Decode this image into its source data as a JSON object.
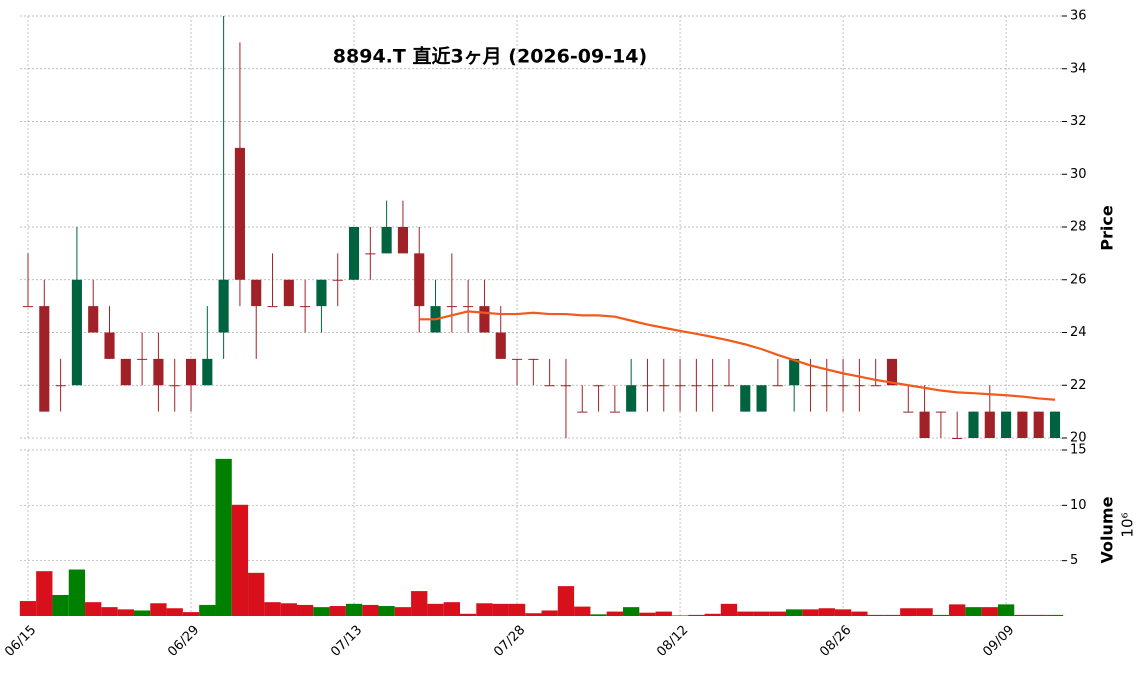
{
  "chart_data": {
    "type": "candlestick",
    "title": "8894.T  直近3ヶ月  (2026-09-14)",
    "categories": [
      "06/15",
      null,
      null,
      null,
      null,
      null,
      null,
      null,
      null,
      null,
      "06/29",
      null,
      null,
      null,
      null,
      null,
      null,
      null,
      null,
      null,
      "07/13",
      null,
      null,
      null,
      null,
      null,
      null,
      null,
      null,
      null,
      "07/28",
      null,
      null,
      null,
      null,
      null,
      null,
      null,
      null,
      null,
      "08/12",
      null,
      null,
      null,
      null,
      null,
      null,
      null,
      null,
      null,
      "08/26",
      null,
      null,
      null,
      null,
      null,
      null,
      null,
      null,
      null,
      "09/09",
      null,
      null,
      null
    ],
    "open": [
      25,
      25,
      22,
      22,
      25,
      24,
      23,
      23,
      23,
      22,
      23,
      22,
      24,
      31,
      26,
      25,
      26,
      25,
      25,
      26,
      26,
      27,
      27,
      28,
      27,
      24,
      25,
      25,
      25,
      24,
      23,
      23,
      22,
      22,
      21,
      22,
      21,
      21,
      22,
      22,
      22,
      22,
      22,
      22,
      21,
      21,
      22,
      22,
      22,
      22,
      22,
      22,
      22,
      23,
      21,
      21,
      21,
      20,
      20,
      21,
      20,
      21,
      21,
      20
    ],
    "high": [
      27,
      26,
      23,
      28,
      26,
      25,
      23,
      24,
      24,
      23,
      23,
      25,
      36,
      35,
      26,
      27,
      26,
      26,
      26,
      27,
      28,
      28,
      29,
      29,
      28,
      26,
      27,
      26,
      26,
      25,
      23,
      23,
      23,
      23,
      22,
      22,
      22,
      23,
      23,
      23,
      23,
      23,
      23,
      23,
      22,
      22,
      23,
      23,
      23,
      23,
      23,
      23,
      23,
      23,
      22,
      22,
      21,
      21,
      21,
      22,
      21,
      21,
      21,
      21
    ],
    "low": [
      25,
      21,
      21,
      22,
      24,
      23,
      22,
      22,
      21,
      21,
      21,
      22,
      23,
      25,
      23,
      25,
      25,
      24,
      24,
      25,
      26,
      26,
      27,
      27,
      24,
      24,
      24,
      24,
      24,
      23,
      22,
      22,
      22,
      20,
      21,
      21,
      21,
      21,
      21,
      21,
      21,
      21,
      21,
      22,
      21,
      21,
      22,
      21,
      21,
      21,
      21,
      21,
      22,
      22,
      21,
      20,
      20,
      20,
      20,
      20,
      20,
      20,
      20,
      20
    ],
    "close": [
      25,
      21,
      22,
      26,
      24,
      23,
      22,
      23,
      22,
      22,
      22,
      23,
      26,
      26,
      25,
      25,
      25,
      25,
      26,
      26,
      28,
      27,
      28,
      27,
      25,
      25,
      25,
      25,
      24,
      23,
      23,
      23,
      22,
      22,
      21,
      22,
      21,
      22,
      22,
      22,
      22,
      22,
      22,
      22,
      22,
      22,
      22,
      23,
      22,
      22,
      22,
      22,
      22,
      22,
      21,
      20,
      21,
      20,
      21,
      20,
      21,
      20,
      20,
      21
    ],
    "up_color": "#006340",
    "down_color": "#a02128",
    "ma": {
      "color": "#f05a1a",
      "values": [
        null,
        null,
        null,
        null,
        null,
        null,
        null,
        null,
        null,
        null,
        null,
        null,
        null,
        null,
        null,
        null,
        null,
        null,
        null,
        null,
        null,
        null,
        null,
        null,
        24.5,
        24.5,
        24.65,
        24.8,
        24.75,
        24.7,
        24.7,
        24.75,
        24.7,
        24.7,
        24.65,
        24.65,
        24.6,
        24.45,
        24.3,
        24.18,
        24.06,
        23.95,
        23.83,
        23.7,
        23.55,
        23.37,
        23.15,
        22.95,
        22.75,
        22.6,
        22.45,
        22.33,
        22.2,
        22.1,
        22.0,
        21.9,
        21.8,
        21.73,
        21.7,
        21.66,
        21.62,
        21.57,
        21.5,
        21.45
      ]
    },
    "ylim": [
      20,
      36
    ],
    "yticks": [
      20,
      22,
      24,
      26,
      28,
      30,
      32,
      34,
      36
    ],
    "ylabel": "Price",
    "grid": true,
    "volume": {
      "type": "bar",
      "up_color": "#008000",
      "down_color": "#d7101c",
      "values": [
        1.35,
        4.05,
        1.9,
        4.2,
        1.25,
        0.8,
        0.6,
        0.5,
        1.15,
        0.7,
        0.35,
        1.0,
        14.2,
        10.05,
        3.9,
        1.25,
        1.15,
        1.0,
        0.8,
        0.9,
        1.1,
        1.0,
        0.9,
        0.8,
        2.25,
        1.1,
        1.25,
        0.2,
        1.15,
        1.1,
        1.1,
        0.25,
        0.5,
        2.7,
        0.85,
        0.15,
        0.4,
        0.8,
        0.3,
        0.4,
        0.05,
        0.1,
        0.2,
        1.1,
        0.4,
        0.4,
        0.4,
        0.6,
        0.6,
        0.7,
        0.6,
        0.4,
        0.1,
        0.1,
        0.7,
        0.7,
        0.1,
        1.05,
        0.8,
        0.8,
        1.05,
        0.1,
        0.1,
        0.1
      ],
      "ylim": [
        0,
        15
      ],
      "yticks": [
        5,
        10,
        15
      ],
      "ylabel": "Volume",
      "scale_label": "10⁶"
    }
  }
}
